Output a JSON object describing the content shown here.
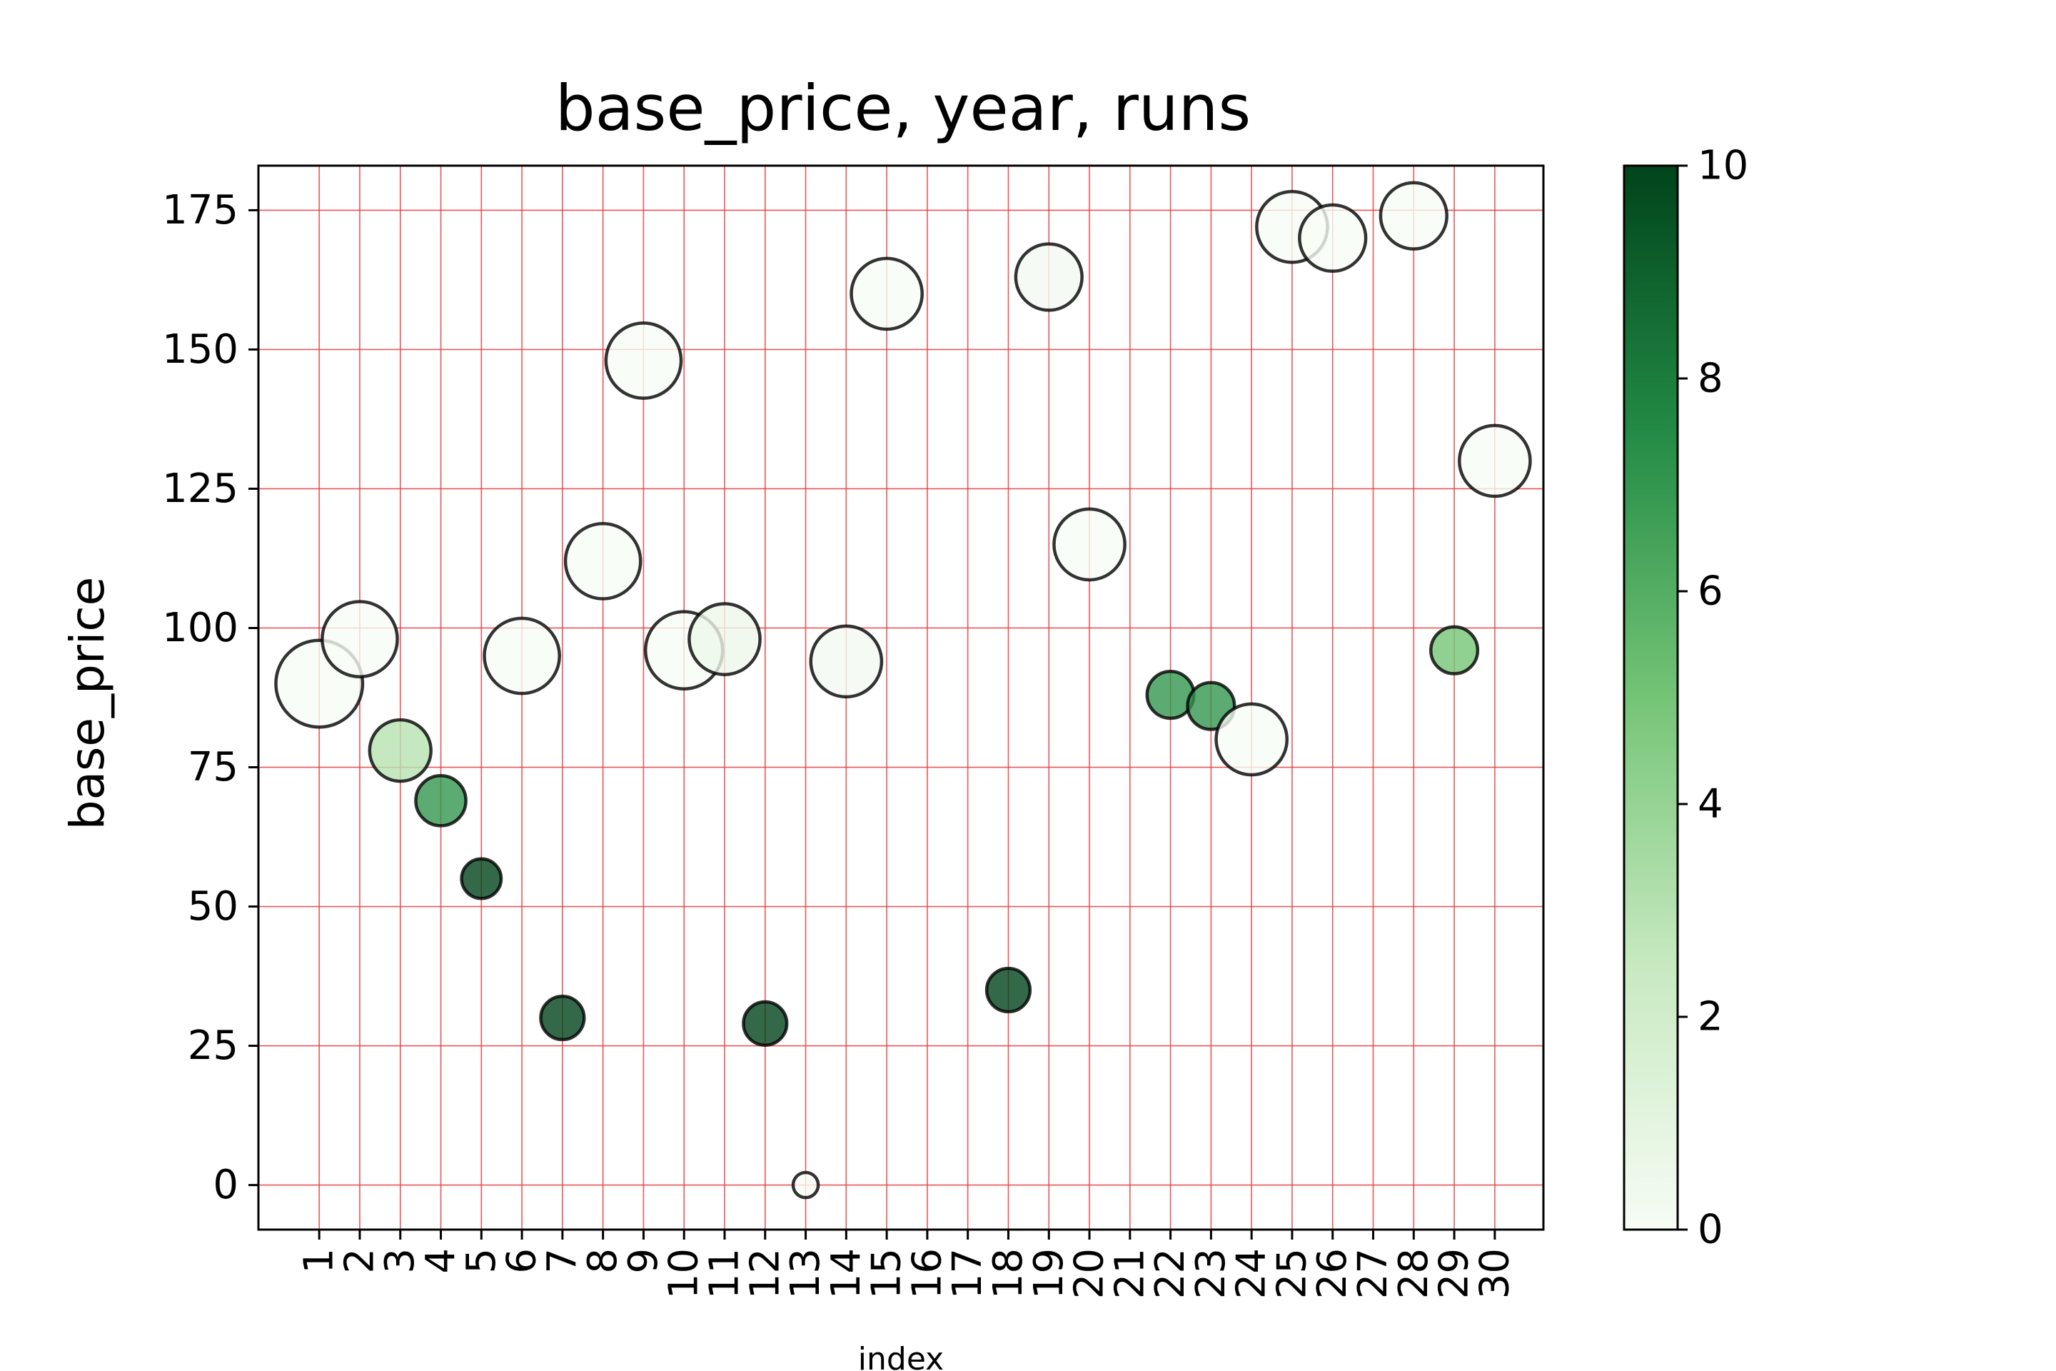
{
  "chart_data": {
    "type": "scatter",
    "title": "base_price, year, runs",
    "xlabel": "index",
    "ylabel": "base_price",
    "xlim": [
      -0.5,
      31.2
    ],
    "ylim": [
      -8,
      183
    ],
    "grid": true,
    "grid_color": "#e8393a",
    "x_ticks": [
      1,
      2,
      3,
      4,
      5,
      6,
      7,
      8,
      9,
      10,
      11,
      12,
      13,
      14,
      15,
      16,
      17,
      18,
      19,
      20,
      21,
      22,
      23,
      24,
      25,
      26,
      27,
      28,
      29,
      30
    ],
    "x_tick_labels": [
      "1",
      "2",
      "3",
      "4",
      "5",
      "6",
      "7",
      "8",
      "9",
      "10",
      "11",
      "12",
      "13",
      "14",
      "15",
      "16",
      "17",
      "18",
      "19",
      "20",
      "21",
      "22",
      "23",
      "24",
      "25",
      "26",
      "27",
      "28",
      "29",
      "30"
    ],
    "y_ticks": [
      0,
      25,
      50,
      75,
      100,
      125,
      150,
      175
    ],
    "y_tick_labels": [
      "0",
      "25",
      "50",
      "75",
      "100",
      "125",
      "150",
      "175"
    ],
    "colorbar": {
      "min": 0,
      "max": 10,
      "ticks": [
        0,
        2,
        4,
        6,
        8,
        10
      ],
      "tick_labels": [
        "0",
        "2",
        "4",
        "6",
        "8",
        "10"
      ],
      "colormap": "Greens",
      "stops": [
        "#f7fcf5",
        "#c7e9c0",
        "#74c476",
        "#238b45",
        "#00441b"
      ]
    },
    "points": [
      {
        "x": 1,
        "y": 90,
        "c": 0,
        "s": 2024
      },
      {
        "x": 2,
        "y": 98,
        "c": 0,
        "s": 2018
      },
      {
        "x": 3,
        "y": 78,
        "c": 3,
        "s": 2012
      },
      {
        "x": 4,
        "y": 69,
        "c": 7,
        "s": 2008
      },
      {
        "x": 5,
        "y": 55,
        "c": 10,
        "s": 2005
      },
      {
        "x": 6,
        "y": 95,
        "c": 0,
        "s": 2018
      },
      {
        "x": 7,
        "y": 30,
        "c": 10,
        "s": 2006
      },
      {
        "x": 8,
        "y": 112,
        "c": 0,
        "s": 2018
      },
      {
        "x": 9,
        "y": 148,
        "c": 0,
        "s": 2018
      },
      {
        "x": 10,
        "y": 96,
        "c": 0,
        "s": 2019
      },
      {
        "x": 11,
        "y": 98,
        "c": 0.5,
        "s": 2016
      },
      {
        "x": 12,
        "y": 29,
        "c": 10,
        "s": 2006
      },
      {
        "x": 13,
        "y": 0,
        "c": 0,
        "s": 2002
      },
      {
        "x": 14,
        "y": 94,
        "c": 0.2,
        "s": 2016
      },
      {
        "x": 15,
        "y": 160,
        "c": 0,
        "s": 2016
      },
      {
        "x": 18,
        "y": 35,
        "c": 10,
        "s": 2006
      },
      {
        "x": 19,
        "y": 163,
        "c": 0.2,
        "s": 2014
      },
      {
        "x": 20,
        "y": 115,
        "c": 0,
        "s": 2016
      },
      {
        "x": 22,
        "y": 88,
        "c": 7,
        "s": 2007
      },
      {
        "x": 23,
        "y": 86,
        "c": 7,
        "s": 2007
      },
      {
        "x": 24,
        "y": 80,
        "c": 0,
        "s": 2016
      },
      {
        "x": 25,
        "y": 172,
        "c": 0,
        "s": 2016
      },
      {
        "x": 26,
        "y": 170,
        "c": 0,
        "s": 2014
      },
      {
        "x": 28,
        "y": 174,
        "c": 0,
        "s": 2014
      },
      {
        "x": 29,
        "y": 96,
        "c": 5,
        "s": 2007
      },
      {
        "x": 30,
        "y": 130,
        "c": 0,
        "s": 2016
      }
    ]
  }
}
